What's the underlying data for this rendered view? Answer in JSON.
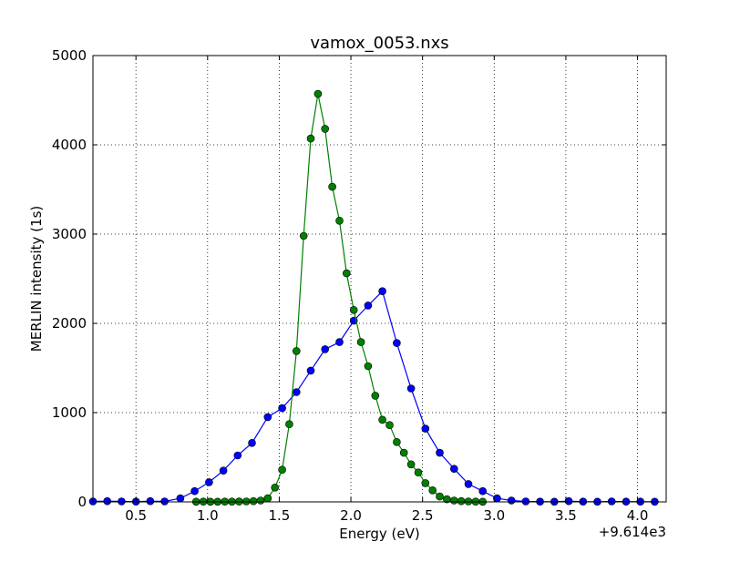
{
  "chart_data": {
    "type": "line",
    "title": "vamox_0053.nxs",
    "xlabel": "Energy (eV)",
    "ylabel": "MERLIN intensity (1s)",
    "offset_label": "+9.614e3",
    "xlim": [
      0.2,
      4.2
    ],
    "ylim": [
      0,
      5000
    ],
    "x_ticks": [
      0.5,
      1.0,
      1.5,
      2.0,
      2.5,
      3.0,
      3.5,
      4.0
    ],
    "x_tick_labels": [
      "0.5",
      "1.0",
      "1.5",
      "2.0",
      "2.5",
      "3.0",
      "3.5",
      "4.0"
    ],
    "y_ticks": [
      0,
      1000,
      2000,
      3000,
      4000,
      5000
    ],
    "y_tick_labels": [
      "0",
      "1000",
      "2000",
      "3000",
      "4000",
      "5000"
    ],
    "grid": true,
    "series": [
      {
        "color": "#0000ff",
        "x": [
          0.2,
          0.3,
          0.4,
          0.5,
          0.6,
          0.7,
          0.81,
          0.91,
          1.01,
          1.11,
          1.21,
          1.31,
          1.42,
          1.52,
          1.62,
          1.72,
          1.82,
          1.92,
          2.02,
          2.12,
          2.22,
          2.32,
          2.42,
          2.52,
          2.62,
          2.72,
          2.82,
          2.92,
          3.02,
          3.12,
          3.22,
          3.32,
          3.42,
          3.52,
          3.62,
          3.72,
          3.82,
          3.92,
          4.02,
          4.12
        ],
        "y": [
          5,
          8,
          5,
          3,
          8,
          5,
          40,
          120,
          220,
          350,
          520,
          660,
          950,
          1050,
          1230,
          1470,
          1710,
          1790,
          2030,
          2200,
          2360,
          1780,
          1270,
          820,
          550,
          370,
          200,
          120,
          40,
          15,
          5,
          3,
          2,
          8,
          3,
          2,
          5,
          3,
          3,
          2
        ]
      },
      {
        "color": "#008000",
        "x": [
          0.92,
          0.97,
          1.02,
          1.07,
          1.12,
          1.17,
          1.22,
          1.27,
          1.32,
          1.37,
          1.42,
          1.47,
          1.52,
          1.57,
          1.62,
          1.67,
          1.72,
          1.77,
          1.82,
          1.87,
          1.92,
          1.97,
          2.02,
          2.07,
          2.12,
          2.17,
          2.22,
          2.27,
          2.32,
          2.37,
          2.42,
          2.47,
          2.52,
          2.57,
          2.62,
          2.67,
          2.72,
          2.77,
          2.82,
          2.87,
          2.92
        ],
        "y": [
          2,
          3,
          2,
          2,
          3,
          3,
          4,
          5,
          8,
          15,
          40,
          160,
          360,
          870,
          1690,
          2980,
          4070,
          4570,
          4180,
          3530,
          3150,
          2560,
          2150,
          1790,
          1520,
          1190,
          920,
          860,
          670,
          550,
          420,
          330,
          210,
          130,
          60,
          30,
          15,
          8,
          5,
          3,
          2
        ]
      }
    ]
  }
}
